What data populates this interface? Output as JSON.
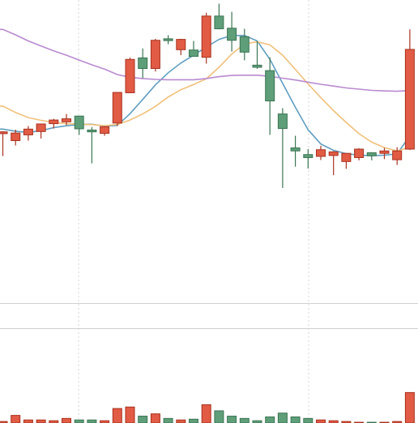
{
  "colors": {
    "up": "#e15b45",
    "up_edge": "#a8321f",
    "down": "#5e9e79",
    "down_edge": "#3b7553",
    "ma_fast": "#5f9ec1",
    "ma_mid": "#f0c07a",
    "ma_slow": "#b98ad0",
    "grid": "#d6d6d6",
    "separator": "#d0d0d0"
  },
  "chart_data": {
    "type": "candlestick",
    "title": "",
    "xlabel": "",
    "ylabel": "",
    "grid": true,
    "price_range": [
      0,
      100
    ],
    "volume_range": [
      0,
      100
    ],
    "candles": [
      {
        "o": 55.9,
        "h": 56.7,
        "l": 48.5,
        "c": 56.5,
        "v": 2
      },
      {
        "o": 53.6,
        "h": 57.2,
        "l": 52.0,
        "c": 56.1,
        "v": 10
      },
      {
        "o": 55.5,
        "h": 58.4,
        "l": 53.6,
        "c": 57.4,
        "v": 4
      },
      {
        "o": 56.6,
        "h": 59.2,
        "l": 54.3,
        "c": 59.1,
        "v": 4
      },
      {
        "o": 59.2,
        "h": 60.8,
        "l": 57.6,
        "c": 60.4,
        "v": 3
      },
      {
        "o": 59.8,
        "h": 62.4,
        "l": 58.7,
        "c": 60.8,
        "v": 6
      },
      {
        "o": 61.7,
        "h": 61.8,
        "l": 55.5,
        "c": 57.5,
        "v": 4
      },
      {
        "o": 57.1,
        "h": 58.1,
        "l": 46.1,
        "c": 56.5,
        "v": 4
      },
      {
        "o": 56.0,
        "h": 58.4,
        "l": 55.2,
        "c": 58.2,
        "v": 3
      },
      {
        "o": 59.4,
        "h": 69.6,
        "l": 58.5,
        "c": 69.5,
        "v": 19
      },
      {
        "o": 69.4,
        "h": 81.0,
        "l": 69.3,
        "c": 80.4,
        "v": 21
      },
      {
        "o": 80.9,
        "h": 84.0,
        "l": 74.2,
        "c": 77.4,
        "v": 9
      },
      {
        "o": 77.4,
        "h": 87.2,
        "l": 76.4,
        "c": 86.7,
        "v": 12
      },
      {
        "o": 87.2,
        "h": 88.4,
        "l": 85.4,
        "c": 86.6,
        "v": 6
      },
      {
        "o": 83.6,
        "h": 87.2,
        "l": 81.8,
        "c": 87.0,
        "v": 4
      },
      {
        "o": 83.5,
        "h": 86.5,
        "l": 81.3,
        "c": 81.4,
        "v": 5
      },
      {
        "o": 81.1,
        "h": 95.8,
        "l": 79.0,
        "c": 94.7,
        "v": 24
      },
      {
        "o": 94.7,
        "h": 98.8,
        "l": 90.3,
        "c": 90.5,
        "v": 16
      },
      {
        "o": 90.7,
        "h": 96.1,
        "l": 83.0,
        "c": 86.7,
        "v": 9
      },
      {
        "o": 87.9,
        "h": 90.5,
        "l": 80.1,
        "c": 82.8,
        "v": 6
      },
      {
        "o": 78.5,
        "h": 86.4,
        "l": 77.3,
        "c": 77.8,
        "v": 3
      },
      {
        "o": 76.7,
        "h": 81.1,
        "l": 55.5,
        "c": 66.7,
        "v": 8
      },
      {
        "o": 62.4,
        "h": 64.3,
        "l": 38.0,
        "c": 57.6,
        "v": 13
      },
      {
        "o": 51.2,
        "h": 55.2,
        "l": 45.0,
        "c": 50.2,
        "v": 8
      },
      {
        "o": 49.0,
        "h": 50.8,
        "l": 44.4,
        "c": 48.0,
        "v": 6
      },
      {
        "o": 48.4,
        "h": 51.9,
        "l": 47.2,
        "c": 50.6,
        "v": 4
      },
      {
        "o": 48.7,
        "h": 50.1,
        "l": 42.2,
        "c": 49.9,
        "v": 3
      },
      {
        "o": 46.7,
        "h": 49.5,
        "l": 44.3,
        "c": 49.4,
        "v": 2
      },
      {
        "o": 48.0,
        "h": 51.1,
        "l": 47.1,
        "c": 50.8,
        "v": 1
      },
      {
        "o": 49.6,
        "h": 49.6,
        "l": 47.1,
        "c": 48.6,
        "v": 1
      },
      {
        "o": 49.4,
        "h": 51.2,
        "l": 47.5,
        "c": 50.2,
        "v": 1
      },
      {
        "o": 47.3,
        "h": 51.4,
        "l": 45.6,
        "c": 50.2,
        "v": 2
      },
      {
        "o": 50.8,
        "h": 90.3,
        "l": 50.5,
        "c": 83.7,
        "v": 40
      }
    ],
    "moving_averages": [
      {
        "name": "",
        "color_key": "ma_fast",
        "values": [
          57.4,
          56.7,
          56.3,
          56.9,
          57.9,
          58.5,
          58.9,
          59.0,
          58.4,
          58.6,
          62.5,
          67.2,
          72.0,
          76.0,
          79.2,
          81.8,
          84.5,
          87.0,
          88.3,
          88.3,
          86.5,
          80.4,
          72.5,
          64.6,
          57.2,
          52.5,
          50.4,
          49.3,
          48.8,
          48.6,
          48.8,
          49.2,
          55.2
        ]
      },
      {
        "name": "",
        "color_key": "ma_mid",
        "values": [
          65.0,
          62.9,
          61.2,
          60.3,
          59.6,
          59.2,
          59.0,
          58.9,
          58.5,
          58.9,
          60.4,
          62.4,
          64.9,
          68.0,
          70.4,
          72.1,
          74.0,
          77.8,
          82.2,
          85.5,
          86.2,
          85.2,
          81.8,
          77.1,
          72.3,
          67.8,
          63.5,
          59.6,
          55.9,
          53.1,
          51.3,
          50.2,
          51.4
        ]
      },
      {
        "name": "",
        "color_key": "ma_slow",
        "values": [
          90.3,
          88.5,
          86.5,
          84.8,
          83.2,
          81.8,
          80.2,
          78.6,
          77.2,
          75.4,
          74.5,
          74.1,
          73.8,
          73.7,
          73.7,
          73.7,
          74.1,
          74.7,
          75.1,
          75.2,
          75.2,
          74.8,
          74.2,
          73.6,
          72.9,
          72.2,
          71.6,
          71.0,
          70.6,
          70.2,
          70.0,
          69.9,
          70.1
        ]
      }
    ]
  }
}
